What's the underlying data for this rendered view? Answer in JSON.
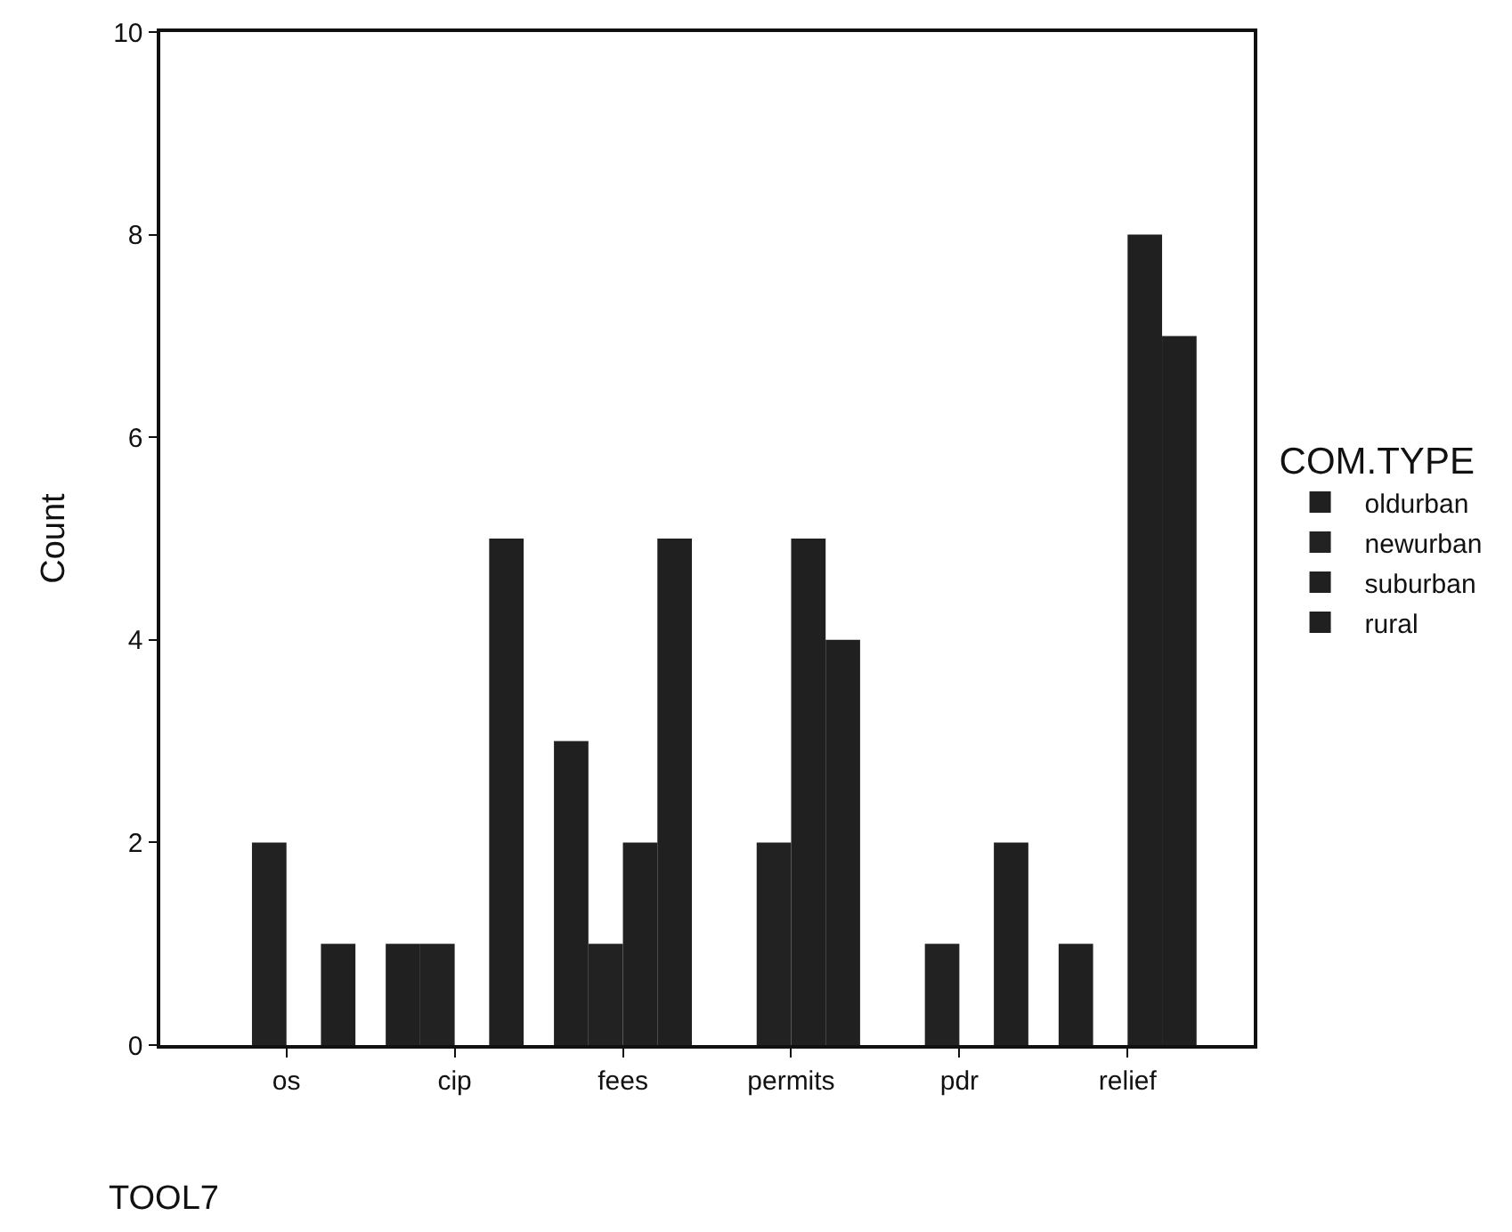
{
  "chart_data": {
    "type": "bar",
    "xlabel": "TOOL7",
    "ylabel": "Count",
    "legend_title": "COM.TYPE",
    "categories": [
      "os",
      "cip",
      "fees",
      "permits",
      "pdr",
      "relief"
    ],
    "series": [
      {
        "name": "oldurban",
        "color": "#202020",
        "values": [
          0,
          1,
          3,
          0,
          0,
          1
        ]
      },
      {
        "name": "newurban",
        "color": "#222222",
        "values": [
          2,
          1,
          1,
          2,
          1,
          0
        ]
      },
      {
        "name": "suburban",
        "color": "#202020",
        "values": [
          0,
          0,
          2,
          5,
          0,
          8
        ]
      },
      {
        "name": "rural",
        "color": "#202020",
        "values": [
          1,
          5,
          5,
          4,
          2,
          7
        ]
      }
    ],
    "ylim": [
      0,
      10
    ],
    "yticks": [
      0,
      2,
      4,
      6,
      8,
      10
    ],
    "grid": false,
    "legend": "right"
  }
}
